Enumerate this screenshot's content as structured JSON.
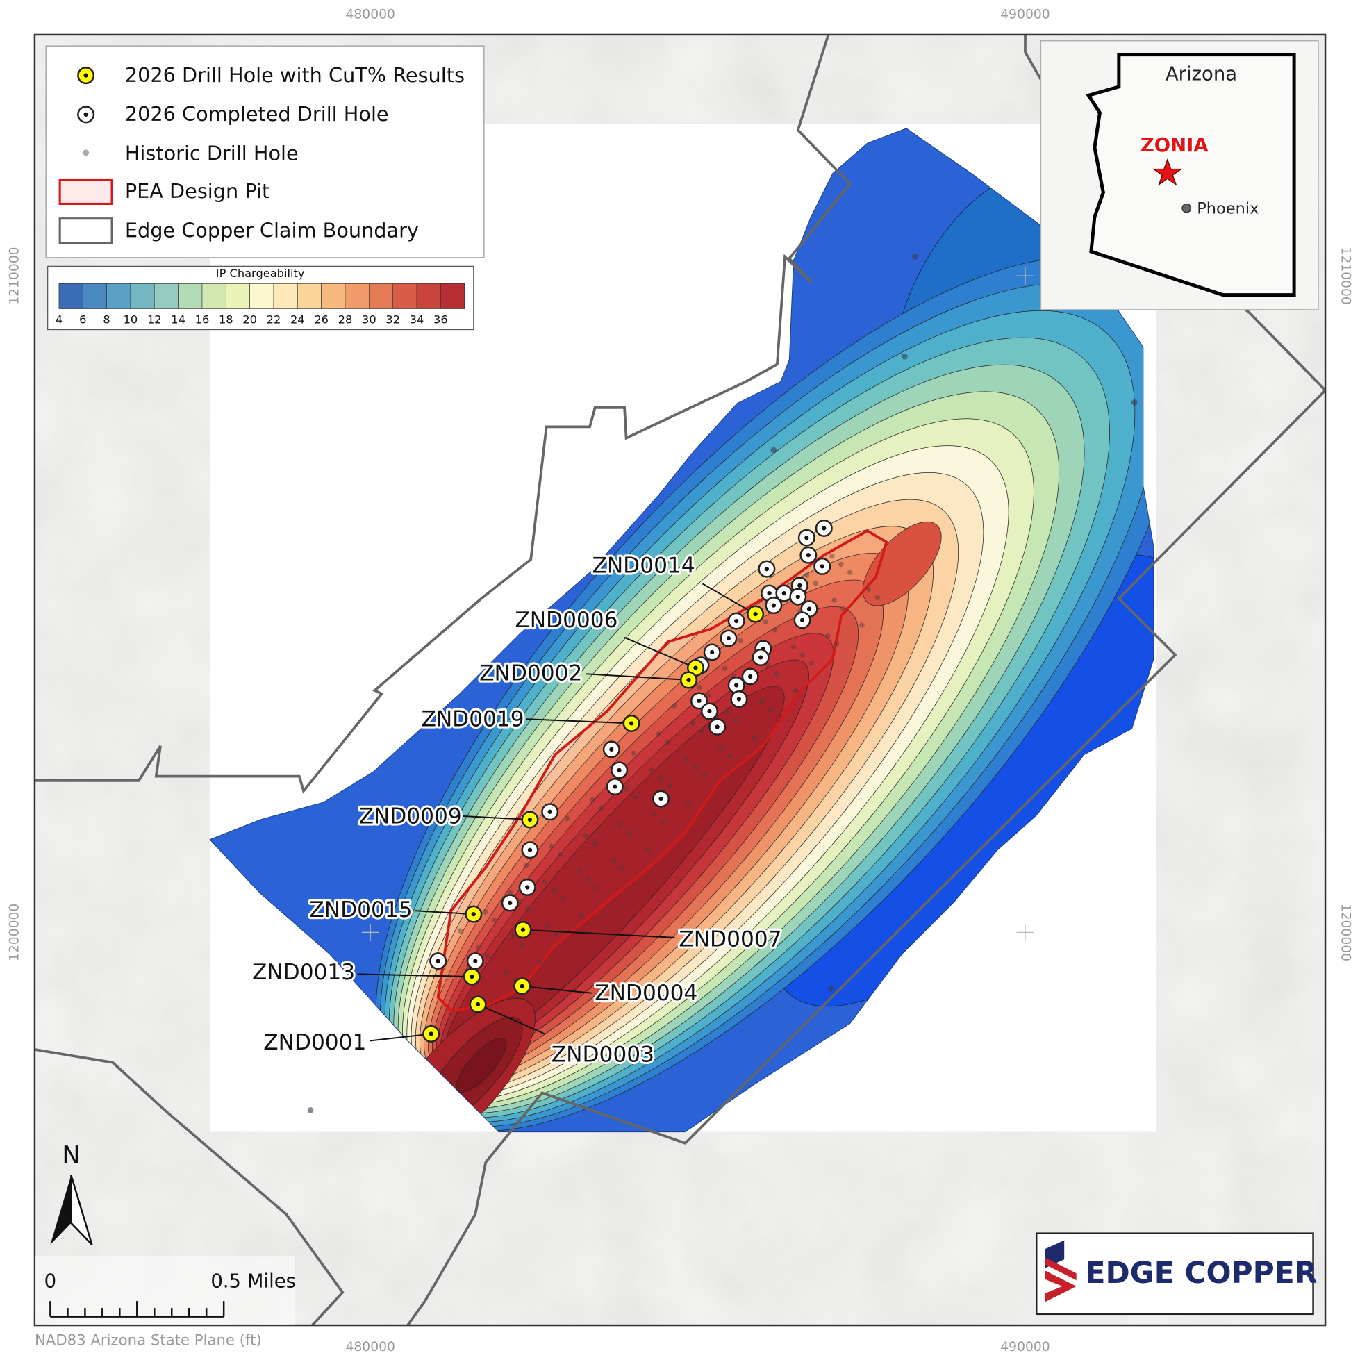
{
  "axis_labels": {
    "top": [
      "480000",
      "490000"
    ],
    "bottom": [
      "480000",
      "490000"
    ],
    "left": [
      "1210000",
      "1200000"
    ],
    "right": [
      "1210000",
      "1200000"
    ]
  },
  "legend": {
    "items": [
      "2026 Drill Hole with CuT% Results",
      "2026 Completed Drill Hole",
      "Historic Drill Hole",
      "PEA Design Pit",
      "Edge Copper Claim Boundary"
    ]
  },
  "colorbar": {
    "title": "IP Chargeability",
    "ticks": [
      4,
      6,
      8,
      10,
      12,
      14,
      16,
      18,
      20,
      22,
      24,
      26,
      28,
      30,
      32,
      34,
      36
    ]
  },
  "inset": {
    "state": "Arizona",
    "site": "ZONIA",
    "city": "Phoenix"
  },
  "north_arrow": "N",
  "scale_bar": {
    "start": "0",
    "end": "0.5 Miles"
  },
  "logo": "EDGE COPPER",
  "projection": "NAD83 Arizona State Plane (ft)",
  "drill_holes": [
    "ZND0014",
    "ZND0006",
    "ZND0002",
    "ZND0019",
    "ZND0009",
    "ZND0015",
    "ZND0013",
    "ZND0001",
    "ZND0007",
    "ZND0004",
    "ZND0003"
  ]
}
